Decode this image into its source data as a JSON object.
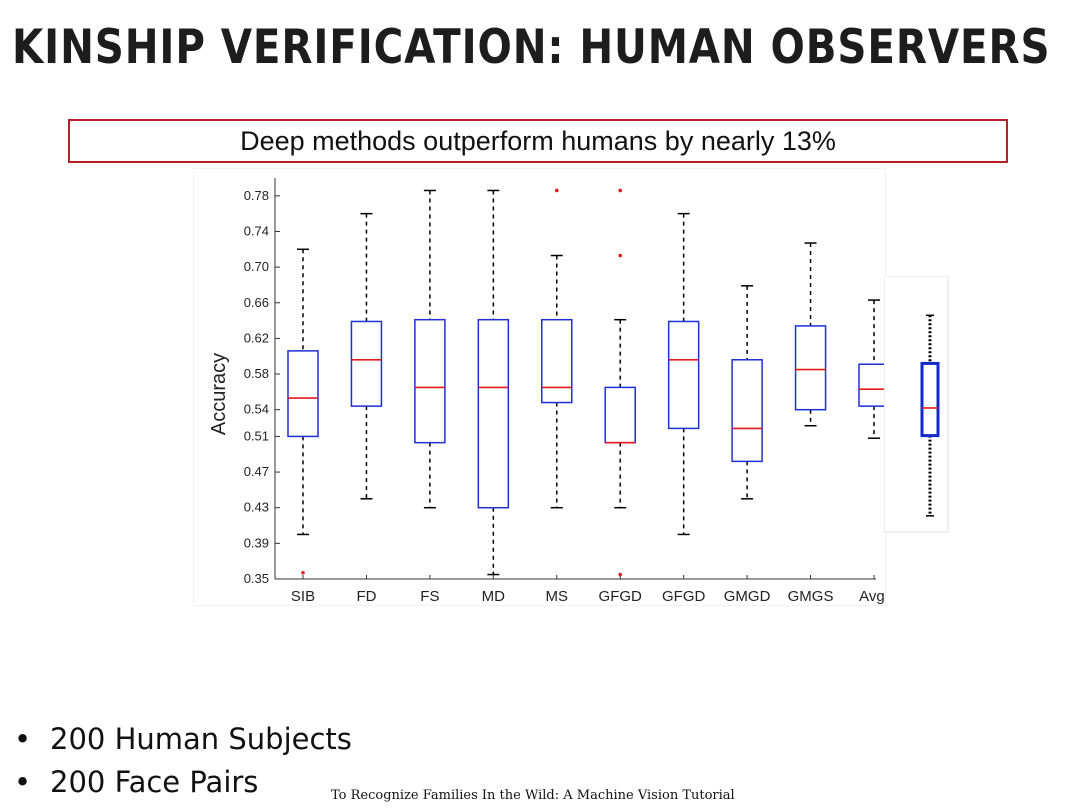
{
  "slide": {
    "title": "KINSHIP VERIFICATION: HUMAN OBSERVERS",
    "callout": "Deep methods outperform humans by nearly 13%",
    "bullets": [
      "200 Human Subjects",
      "200 Face Pairs"
    ],
    "footer": "To Recognize Families In the Wild: A Machine Vision Tutorial"
  },
  "colors": {
    "box": "#1f2fd6",
    "median": "#e41a1c",
    "outlier": "#e41a1c",
    "whisker": "#000000",
    "axis": "#333333",
    "callout_border": "#b5202a",
    "side_box": "#1428c8"
  },
  "chart_data": [
    {
      "type": "box",
      "ylabel": "Accuracy",
      "xlabel": "",
      "ylim": [
        0.35,
        0.8
      ],
      "yticks": [
        "0.35",
        "0.39",
        "0.43",
        "0.47",
        "0.51",
        "0.54",
        "0.58",
        "0.62",
        "0.66",
        "0.70",
        "0.74",
        "0.78"
      ],
      "grid": false,
      "categories": [
        "SIB",
        "FD",
        "FS",
        "MD",
        "MS",
        "GFGD",
        "GFGD",
        "GMGD",
        "GMGS",
        "Avg."
      ],
      "boxes": [
        {
          "whislo": 0.4,
          "q1": 0.51,
          "med": 0.553,
          "q3": 0.606,
          "whishi": 0.72,
          "fliers": [
            0.357
          ]
        },
        {
          "whislo": 0.44,
          "q1": 0.544,
          "med": 0.596,
          "q3": 0.639,
          "whishi": 0.76,
          "fliers": []
        },
        {
          "whislo": 0.43,
          "q1": 0.503,
          "med": 0.565,
          "q3": 0.641,
          "whishi": 0.786,
          "fliers": []
        },
        {
          "whislo": 0.355,
          "q1": 0.43,
          "med": 0.565,
          "q3": 0.641,
          "whishi": 0.786,
          "fliers": []
        },
        {
          "whislo": 0.43,
          "q1": 0.548,
          "med": 0.565,
          "q3": 0.641,
          "whishi": 0.713,
          "fliers": [
            0.786
          ]
        },
        {
          "whislo": 0.43,
          "q1": 0.503,
          "med": 0.503,
          "q3": 0.565,
          "whishi": 0.641,
          "fliers": [
            0.786,
            0.713,
            0.355
          ]
        },
        {
          "whislo": 0.4,
          "q1": 0.519,
          "med": 0.596,
          "q3": 0.639,
          "whishi": 0.76,
          "fliers": []
        },
        {
          "whislo": 0.44,
          "q1": 0.482,
          "med": 0.519,
          "q3": 0.596,
          "whishi": 0.679,
          "fliers": []
        },
        {
          "whislo": 0.522,
          "q1": 0.54,
          "med": 0.585,
          "q3": 0.634,
          "whishi": 0.727,
          "fliers": []
        },
        {
          "whislo": 0.508,
          "q1": 0.544,
          "med": 0.563,
          "q3": 0.591,
          "whishi": 0.663,
          "fliers": []
        }
      ]
    },
    {
      "type": "box",
      "note_visible": false,
      "ylim": [
        0.35,
        0.8
      ],
      "boxes": [
        {
          "whislo": 0.44,
          "q1": 0.53,
          "med": 0.561,
          "q3": 0.611,
          "whishi": 0.665,
          "fliers": []
        }
      ]
    }
  ]
}
